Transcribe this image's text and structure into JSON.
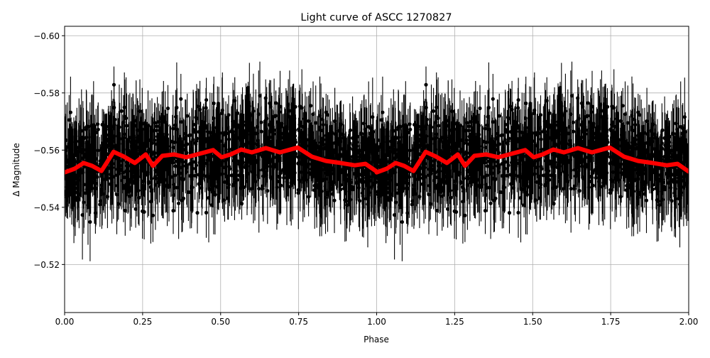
{
  "chart_data": {
    "type": "scatter",
    "title": "Light curve of ASCC 1270827",
    "xlabel": "Phase",
    "ylabel": "Δ Magnitude",
    "xlim": [
      0.0,
      2.0
    ],
    "ylim": [
      -0.5032,
      -0.6033
    ],
    "y_inverted": true,
    "grid": true,
    "x_ticks": [
      0.0,
      0.25,
      0.5,
      0.75,
      1.0,
      1.25,
      1.5,
      1.75,
      2.0
    ],
    "x_tick_labels": [
      "0.00",
      "0.25",
      "0.50",
      "0.75",
      "1.00",
      "1.25",
      "1.50",
      "1.75",
      "2.00"
    ],
    "y_ticks": [
      -0.6,
      -0.58,
      -0.56,
      -0.54,
      -0.52
    ],
    "y_tick_labels": [
      "−0.60",
      "−0.58",
      "−0.56",
      "−0.54",
      "−0.52"
    ],
    "series": [
      {
        "name": "observations",
        "kind": "errorbar-scatter",
        "color": "#000000",
        "description": "Dense phase-folded photometry with vertical error bars, scatter roughly -0.60 to -0.50 mag, repeated over two phase cycles",
        "mean": -0.557,
        "spread": 0.02
      },
      {
        "name": "binned model",
        "kind": "line",
        "color": "#ff0000",
        "x": [
          0.0,
          0.032,
          0.061,
          0.088,
          0.118,
          0.157,
          0.191,
          0.225,
          0.26,
          0.283,
          0.313,
          0.351,
          0.39,
          0.431,
          0.476,
          0.503,
          0.532,
          0.566,
          0.6,
          0.645,
          0.69,
          0.747,
          0.793,
          0.838,
          0.884,
          0.93,
          0.964,
          1.0
        ],
        "values": [
          -0.5522,
          -0.5535,
          -0.5555,
          -0.5545,
          -0.5527,
          -0.5594,
          -0.5577,
          -0.5555,
          -0.5585,
          -0.5545,
          -0.558,
          -0.5585,
          -0.5575,
          -0.5587,
          -0.56,
          -0.5575,
          -0.5585,
          -0.5602,
          -0.5592,
          -0.5607,
          -0.5592,
          -0.5609,
          -0.5577,
          -0.5562,
          -0.5555,
          -0.5547,
          -0.5552,
          -0.5525
        ],
        "repeats_period": 1.0
      }
    ]
  }
}
